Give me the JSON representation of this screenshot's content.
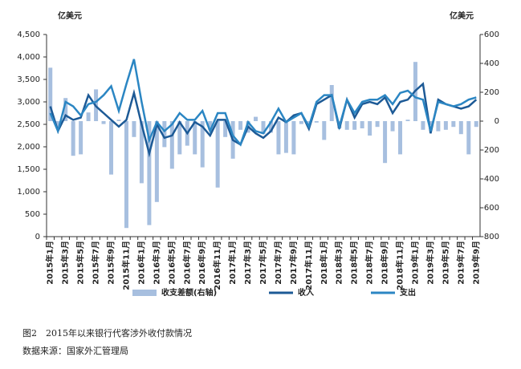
{
  "chart_data": {
    "type": "bar_line",
    "y_label": "亿美元",
    "y2_label": "亿美元",
    "caption": "图2　2015年以来银行代客涉外收付款情况",
    "source": "数据来源：国家外汇管理局",
    "categories": [
      "2015年1月",
      null,
      "2015年3月",
      null,
      "2015年5月",
      null,
      "2015年7月",
      null,
      "2015年9月",
      null,
      "2015年11月",
      null,
      "2016年1月",
      null,
      "2016年3月",
      null,
      "2016年5月",
      null,
      "2016年7月",
      null,
      "2016年9月",
      null,
      "2016年11月",
      null,
      "2017年1月",
      null,
      "2017年3月",
      null,
      "2017年5月",
      null,
      "2017年7月",
      null,
      "2017年9月",
      null,
      "2017年11月",
      null,
      "2018年1月",
      null,
      "2018年3月",
      null,
      "2018年5月",
      null,
      "2018年7月",
      null,
      "2018年9月",
      null,
      "2018年11月",
      null,
      "2019年1月",
      null,
      "2019年3月",
      null,
      "2019年5月",
      null,
      "2019年7月",
      null,
      "2019年9月"
    ],
    "series": [
      {
        "name": "收支差额(右轴)",
        "type": "bar",
        "axis": "y2",
        "color": "#a7bfdf",
        "values": [
          370,
          -50,
          160,
          -240,
          -230,
          60,
          220,
          -20,
          -370,
          10,
          -740,
          -110,
          -430,
          -720,
          -560,
          -180,
          -330,
          -230,
          -170,
          -230,
          -320,
          -60,
          -460,
          -110,
          -260,
          -60,
          -80,
          30,
          -90,
          -80,
          -230,
          -220,
          -230,
          -20,
          -30,
          -10,
          -130,
          250,
          -50,
          -60,
          -60,
          -50,
          -100,
          -40,
          -290,
          -70,
          -230,
          10,
          410,
          -60,
          -30,
          -70,
          -60,
          -40,
          -90,
          -230,
          -40
        ]
      },
      {
        "name": "收入",
        "type": "line",
        "color": "#1d5a96",
        "values": [
          2900,
          2350,
          2700,
          2600,
          2650,
          3150,
          2900,
          2750,
          2600,
          2450,
          2600,
          3200,
          2500,
          1850,
          2500,
          2200,
          2250,
          2550,
          2300,
          2550,
          2450,
          2250,
          2600,
          2600,
          2150,
          2050,
          2450,
          2300,
          2200,
          2350,
          2650,
          2550,
          2700,
          2750,
          2400,
          2950,
          3050,
          3150,
          2400,
          3050,
          2650,
          2950,
          3000,
          2950,
          3100,
          2750,
          3000,
          3050,
          3250,
          3400,
          2300,
          3050,
          2950,
          2900,
          2850,
          2900,
          3050
        ]
      },
      {
        "name": "支出",
        "type": "line",
        "color": "#2b86c3",
        "values": [
          2750,
          2350,
          3000,
          2900,
          2700,
          2950,
          3000,
          3150,
          3350,
          2800,
          3400,
          3950,
          3000,
          2150,
          2550,
          2350,
          2500,
          2750,
          2600,
          2600,
          2800,
          2350,
          2750,
          2750,
          2250,
          2050,
          2550,
          2350,
          2300,
          2550,
          2850,
          2550,
          2650,
          2750,
          2450,
          3000,
          3150,
          3150,
          2450,
          3050,
          2750,
          3000,
          3050,
          3050,
          3150,
          2950,
          3200,
          3250,
          3100,
          3050,
          2350,
          3000,
          2950,
          2900,
          2950,
          3050,
          3100
        ]
      }
    ],
    "ylim": [
      0,
      4500
    ],
    "yticks": [
      0,
      500,
      {
        "value": 1000,
        "label": "1,000"
      },
      {
        "value": 1500,
        "label": "1,500"
      },
      {
        "value": 2000,
        "label": "2,000"
      },
      {
        "value": 2500,
        "label": "2,500"
      },
      {
        "value": 3000,
        "label": "3,000"
      },
      {
        "value": 3500,
        "label": "3,500"
      },
      {
        "value": 4000,
        "label": "4,000"
      },
      {
        "value": 4500,
        "label": "4,500"
      }
    ],
    "y2lim": [
      -800,
      600
    ],
    "y2ticks": [
      -800,
      -600,
      -400,
      -200,
      0,
      200,
      400,
      600
    ],
    "grid": false
  }
}
